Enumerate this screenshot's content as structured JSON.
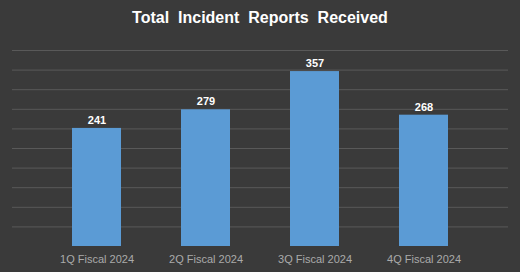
{
  "chart_data": {
    "type": "bar",
    "title": "Total  Incident  Reports  Received",
    "categories": [
      "1Q Fiscal 2024",
      "2Q Fiscal 2024",
      "3Q Fiscal 2024",
      "4Q Fiscal 2024"
    ],
    "values": [
      241,
      279,
      357,
      268
    ],
    "color": "#5b9bd5",
    "ylim": [
      0,
      400
    ],
    "yticks": [
      40,
      80,
      120,
      160,
      200,
      240,
      280,
      320,
      360,
      400
    ],
    "grid": true,
    "data_labels": true,
    "tick_labels": "x"
  }
}
